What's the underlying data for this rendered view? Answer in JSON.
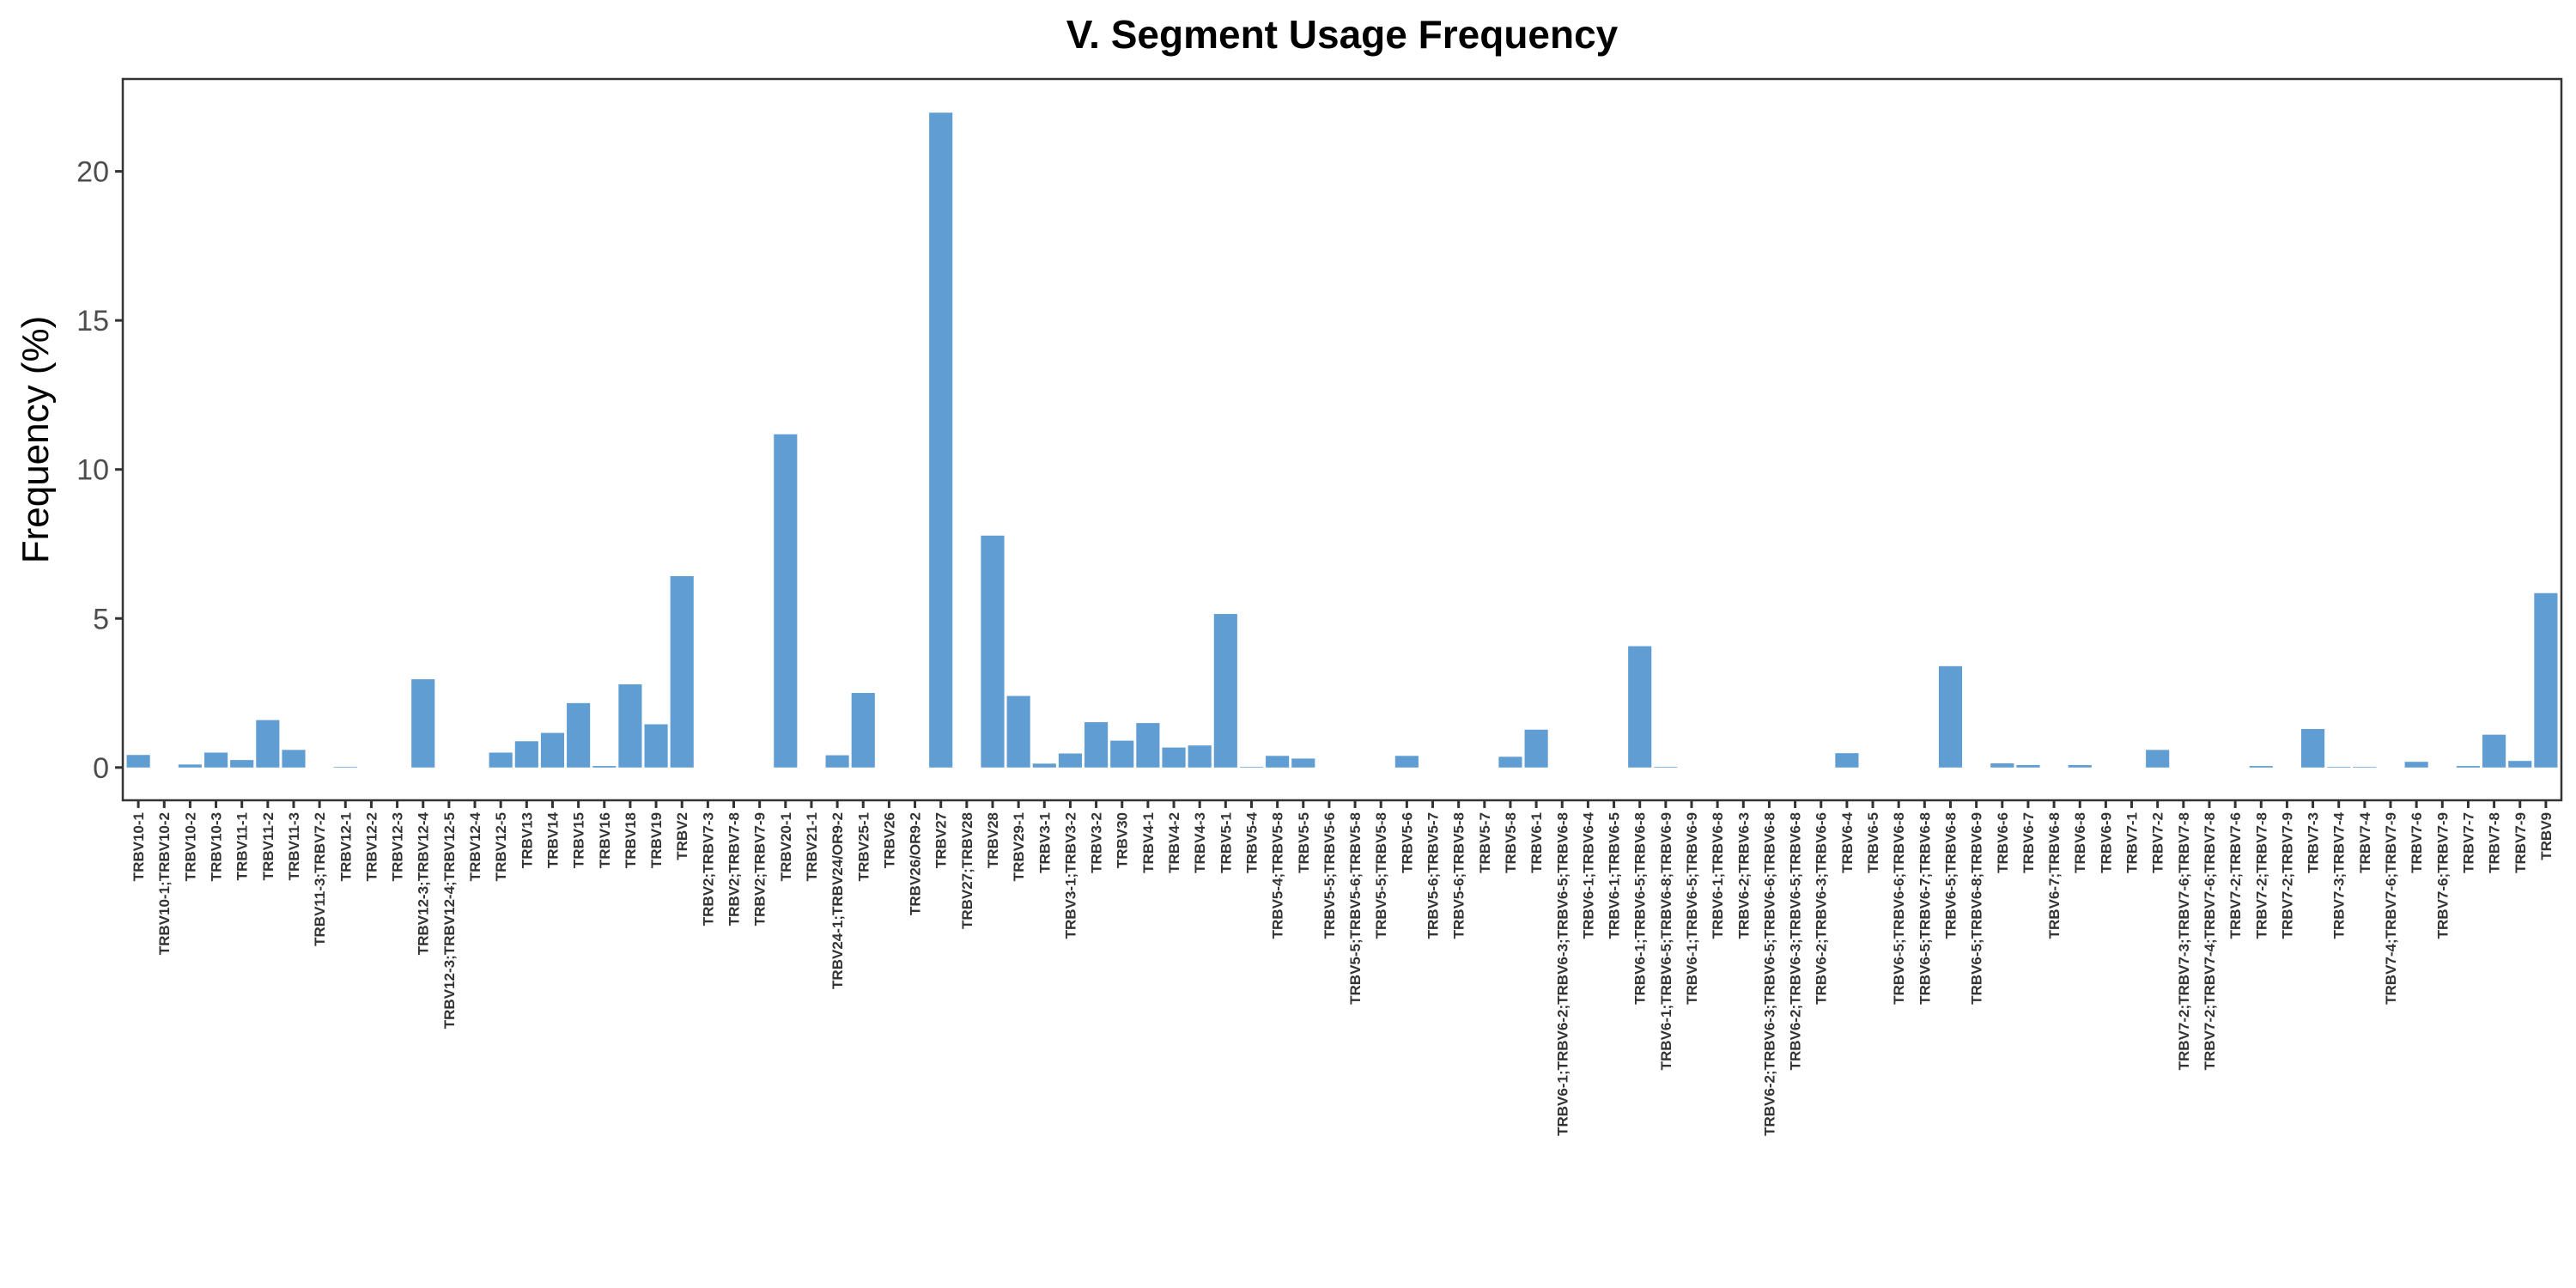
{
  "chart_data": {
    "type": "bar",
    "title": "V. Segment Usage Frequency",
    "xlabel": "",
    "ylabel": "Frequency (%)",
    "ylim": [
      -1.1,
      23.1
    ],
    "yticks": [
      0,
      5,
      10,
      15,
      20
    ],
    "grid": false,
    "legend": "none",
    "bar_color": "#5F9DD3",
    "categories": [
      "TRBV10-1",
      "TRBV10-1;TRBV10-2",
      "TRBV10-2",
      "TRBV10-3",
      "TRBV11-1",
      "TRBV11-2",
      "TRBV11-3",
      "TRBV11-3;TRBV7-2",
      "TRBV12-1",
      "TRBV12-2",
      "TRBV12-3",
      "TRBV12-3;TRBV12-4",
      "TRBV12-3;TRBV12-4;TRBV12-5",
      "TRBV12-4",
      "TRBV12-5",
      "TRBV13",
      "TRBV14",
      "TRBV15",
      "TRBV16",
      "TRBV18",
      "TRBV19",
      "TRBV2",
      "TRBV2;TRBV7-3",
      "TRBV2;TRBV7-8",
      "TRBV2;TRBV7-9",
      "TRBV20-1",
      "TRBV21-1",
      "TRBV24-1;TRBV24/OR9-2",
      "TRBV25-1",
      "TRBV26",
      "TRBV26/OR9-2",
      "TRBV27",
      "TRBV27;TRBV28",
      "TRBV28",
      "TRBV29-1",
      "TRBV3-1",
      "TRBV3-1;TRBV3-2",
      "TRBV3-2",
      "TRBV30",
      "TRBV4-1",
      "TRBV4-2",
      "TRBV4-3",
      "TRBV5-1",
      "TRBV5-4",
      "TRBV5-4;TRBV5-8",
      "TRBV5-5",
      "TRBV5-5;TRBV5-6",
      "TRBV5-5;TRBV5-6;TRBV5-8",
      "TRBV5-5;TRBV5-8",
      "TRBV5-6",
      "TRBV5-6;TRBV5-7",
      "TRBV5-6;TRBV5-8",
      "TRBV5-7",
      "TRBV5-8",
      "TRBV6-1",
      "TRBV6-1;TRBV6-2;TRBV6-3;TRBV6-5;TRBV6-8",
      "TRBV6-1;TRBV6-4",
      "TRBV6-1;TRBV6-5",
      "TRBV6-1;TRBV6-5;TRBV6-8",
      "TRBV6-1;TRBV6-5;TRBV6-8;TRBV6-9",
      "TRBV6-1;TRBV6-5;TRBV6-9",
      "TRBV6-1;TRBV6-8",
      "TRBV6-2;TRBV6-3",
      "TRBV6-2;TRBV6-3;TRBV6-5;TRBV6-6;TRBV6-8",
      "TRBV6-2;TRBV6-3;TRBV6-5;TRBV6-8",
      "TRBV6-2;TRBV6-3;TRBV6-6",
      "TRBV6-4",
      "TRBV6-5",
      "TRBV6-5;TRBV6-6;TRBV6-8",
      "TRBV6-5;TRBV6-7;TRBV6-8",
      "TRBV6-5;TRBV6-8",
      "TRBV6-5;TRBV6-8;TRBV6-9",
      "TRBV6-6",
      "TRBV6-7",
      "TRBV6-7;TRBV6-8",
      "TRBV6-8",
      "TRBV6-9",
      "TRBV7-1",
      "TRBV7-2",
      "TRBV7-2;TRBV7-3;TRBV7-6;TRBV7-8",
      "TRBV7-2;TRBV7-4;TRBV7-6;TRBV7-8",
      "TRBV7-2;TRBV7-6",
      "TRBV7-2;TRBV7-8",
      "TRBV7-2;TRBV7-9",
      "TRBV7-3",
      "TRBV7-3;TRBV7-4",
      "TRBV7-4",
      "TRBV7-4;TRBV7-6;TRBV7-9",
      "TRBV7-6",
      "TRBV7-6;TRBV7-9",
      "TRBV7-7",
      "TRBV7-8",
      "TRBV7-9",
      "TRBV9"
    ],
    "values": [
      0.42,
      0,
      0.1,
      0.5,
      0.25,
      1.59,
      0.59,
      0,
      0.02,
      0,
      0,
      2.96,
      0,
      0,
      0.5,
      0.88,
      1.16,
      2.16,
      0.05,
      2.79,
      1.45,
      6.42,
      0,
      0,
      0,
      11.18,
      0,
      0.41,
      2.5,
      0,
      0,
      21.97,
      0,
      7.78,
      2.4,
      0.13,
      0.47,
      1.52,
      0.9,
      1.49,
      0.67,
      0.74,
      5.15,
      0.02,
      0.39,
      0.3,
      0,
      0,
      0,
      0.39,
      0,
      0,
      0,
      0.36,
      1.27,
      0,
      0,
      0,
      4.07,
      0.02,
      0,
      0,
      0,
      0,
      0,
      0,
      0.48,
      0,
      0,
      0,
      3.4,
      0,
      0.14,
      0.08,
      0,
      0.08,
      0,
      0,
      0.59,
      0,
      0,
      0,
      0.05,
      0,
      1.29,
      0.02,
      0.02,
      0,
      0.19,
      0,
      0.05,
      1.1,
      0.22,
      5.85
    ]
  }
}
